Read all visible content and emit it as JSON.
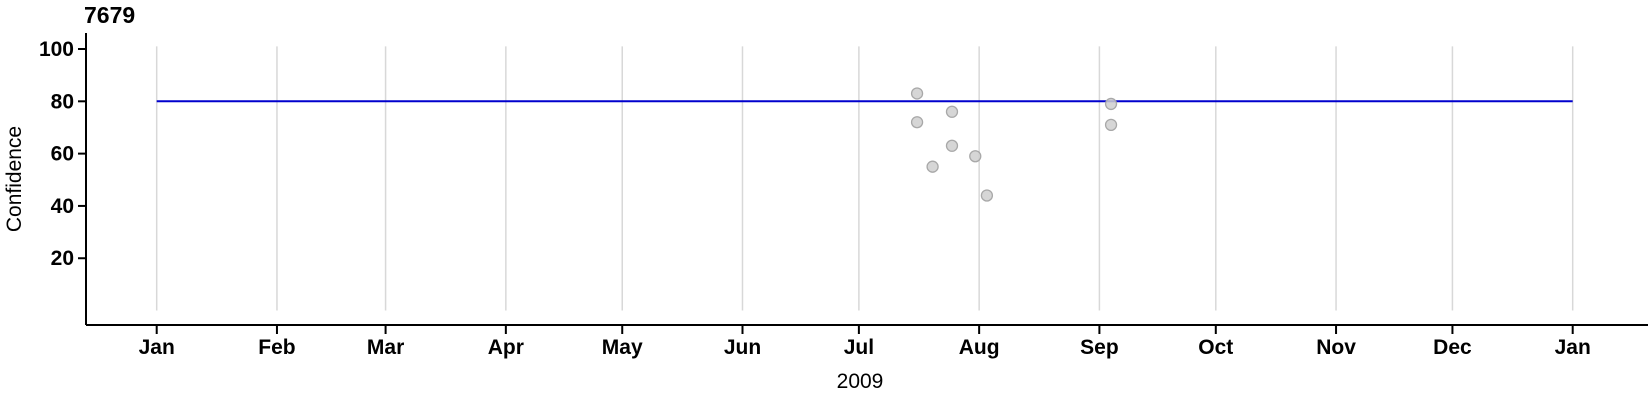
{
  "chart_data": {
    "type": "scatter",
    "title": "7679",
    "xlabel": "2009",
    "ylabel": "Confidence",
    "x_axis": {
      "year": 2009,
      "tick_labels": [
        "Jan",
        "Feb",
        "Mar",
        "Apr",
        "May",
        "Jun",
        "Jul",
        "Aug",
        "Sep",
        "Oct",
        "Nov",
        "Dec",
        "Jan"
      ],
      "scale": "time",
      "range": [
        "2009-01-01",
        "2010-01-01"
      ]
    },
    "y_axis": {
      "ticks": [
        20,
        40,
        60,
        80,
        100
      ],
      "lim": [
        0,
        101
      ]
    },
    "grid": {
      "vertical": true,
      "horizontal": false,
      "color": "#d8d8d8"
    },
    "reference_line": {
      "value": 80,
      "color": "#0000cd"
    },
    "points": [
      {
        "date": "2009-07-16",
        "confidence": 83
      },
      {
        "date": "2009-07-16",
        "confidence": 72
      },
      {
        "date": "2009-07-20",
        "confidence": 55
      },
      {
        "date": "2009-07-25",
        "confidence": 76
      },
      {
        "date": "2009-07-25",
        "confidence": 63
      },
      {
        "date": "2009-07-31",
        "confidence": 59
      },
      {
        "date": "2009-08-03",
        "confidence": 44
      },
      {
        "date": "2009-09-04",
        "confidence": 79
      },
      {
        "date": "2009-09-04",
        "confidence": 71
      }
    ],
    "point_style": {
      "fill": "#cfcfcf",
      "stroke": "#a8a8a8",
      "opacity": 0.85
    },
    "axis_color": "#000000"
  }
}
